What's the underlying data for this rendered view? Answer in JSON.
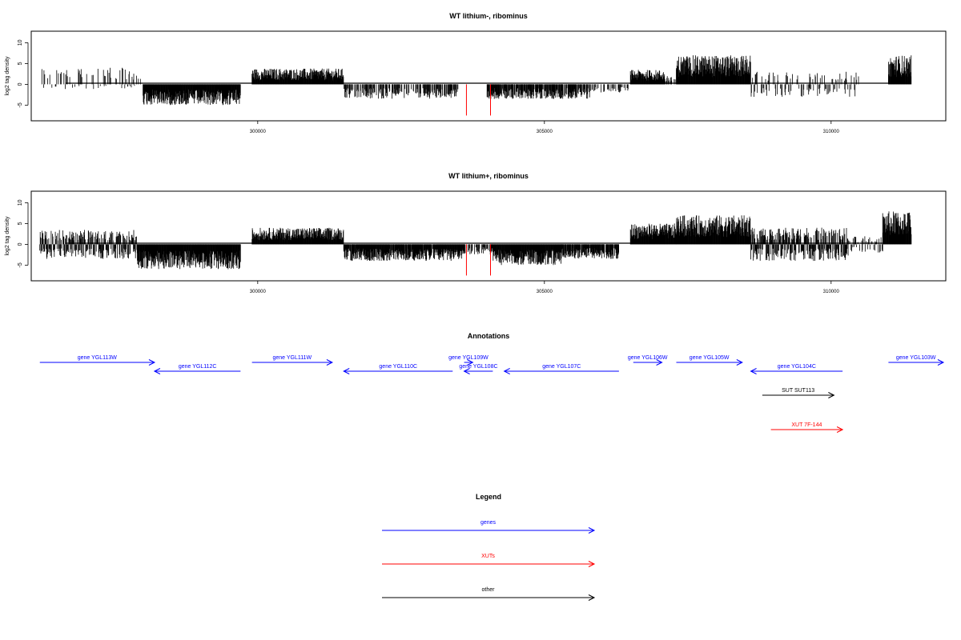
{
  "colors": {
    "gene": "#0000ff",
    "xut": "#ff0000",
    "other": "#000000",
    "highlight": "#ff0000",
    "bars": "#000000"
  },
  "chart_data": [
    {
      "type": "bar",
      "title": "WT lithium-, ribominus",
      "ylabel": "log2 tag density",
      "xlim": [
        296050,
        312000
      ],
      "ylim": [
        -8,
        12
      ],
      "yticks": [
        -5,
        0,
        5,
        10
      ],
      "xticks": [
        300000,
        305000,
        310000
      ],
      "grid": false,
      "segments": [
        {
          "x0": 296200,
          "x1": 297900,
          "pattern": "sparse_pos",
          "amp": 4,
          "density": 0.25
        },
        {
          "x0": 297900,
          "x1": 298000,
          "pattern": "pos",
          "amp": 2,
          "density": 0.3
        },
        {
          "x0": 298000,
          "x1": 299700,
          "pattern": "neg",
          "amp": 5,
          "density": 1.0
        },
        {
          "x0": 299900,
          "x1": 301500,
          "pattern": "pos",
          "amp": 3.8,
          "density": 1.0
        },
        {
          "x0": 301500,
          "x1": 303500,
          "pattern": "neg",
          "amp": 3.5,
          "density": 0.5
        },
        {
          "x0": 304000,
          "x1": 305800,
          "pattern": "neg",
          "amp": 3.5,
          "density": 0.8
        },
        {
          "x0": 305800,
          "x1": 306500,
          "pattern": "neg",
          "amp": 2,
          "density": 0.3
        },
        {
          "x0": 306500,
          "x1": 307100,
          "pattern": "pos",
          "amp": 3.5,
          "density": 1.0
        },
        {
          "x0": 307100,
          "x1": 307300,
          "pattern": "pos",
          "amp": 2,
          "density": 0.4
        },
        {
          "x0": 307300,
          "x1": 308600,
          "pattern": "pos",
          "amp": 7,
          "density": 1.0
        },
        {
          "x0": 308600,
          "x1": 310500,
          "pattern": "mixed",
          "amp": 3,
          "density": 0.3
        },
        {
          "x0": 311000,
          "x1": 311400,
          "pattern": "pos",
          "amp": 7,
          "density": 1.0
        }
      ],
      "highlighted_bars": [
        {
          "x": 303640,
          "y": -7.5
        },
        {
          "x": 304060,
          "y": -7.5
        }
      ]
    },
    {
      "type": "bar",
      "title": "WT lithium+, ribominus",
      "ylabel": "log2 tag density",
      "xlim": [
        296050,
        312000
      ],
      "ylim": [
        -8,
        12
      ],
      "yticks": [
        -5,
        0,
        5,
        10
      ],
      "xticks": [
        300000,
        305000,
        310000
      ],
      "grid": false,
      "segments": [
        {
          "x0": 296200,
          "x1": 297900,
          "pattern": "mixed",
          "amp": 3.5,
          "density": 0.85
        },
        {
          "x0": 297900,
          "x1": 299700,
          "pattern": "neg",
          "amp": 6,
          "density": 1.0
        },
        {
          "x0": 299900,
          "x1": 301500,
          "pattern": "pos",
          "amp": 4,
          "density": 1.0
        },
        {
          "x0": 301500,
          "x1": 303600,
          "pattern": "neg",
          "amp": 4,
          "density": 0.95
        },
        {
          "x0": 303600,
          "x1": 304100,
          "pattern": "neg",
          "amp": 2.5,
          "density": 0.5
        },
        {
          "x0": 304100,
          "x1": 305300,
          "pattern": "neg",
          "amp": 5,
          "density": 1.0
        },
        {
          "x0": 305300,
          "x1": 306300,
          "pattern": "neg",
          "amp": 3.5,
          "density": 0.9
        },
        {
          "x0": 306500,
          "x1": 307300,
          "pattern": "pos",
          "amp": 5,
          "density": 1.0
        },
        {
          "x0": 307300,
          "x1": 308600,
          "pattern": "pos",
          "amp": 7,
          "density": 1.0
        },
        {
          "x0": 308600,
          "x1": 310300,
          "pattern": "mixed",
          "amp": 4,
          "density": 1.0
        },
        {
          "x0": 310300,
          "x1": 310900,
          "pattern": "mixed",
          "amp": 2,
          "density": 0.4
        },
        {
          "x0": 310900,
          "x1": 311400,
          "pattern": "pos",
          "amp": 8,
          "density": 1.0
        }
      ],
      "highlighted_bars": [
        {
          "x": 303640,
          "y": -7.5
        },
        {
          "x": 304060,
          "y": -7.5
        }
      ]
    }
  ],
  "annotations": {
    "title": "Annotations",
    "xlim": [
      296050,
      312000
    ],
    "features": [
      {
        "label": "gene YGL113W",
        "start": 296200,
        "end": 298200,
        "strand": "+",
        "kind": "gene",
        "row": 0
      },
      {
        "label": "gene YGL112C",
        "start": 298200,
        "end": 299700,
        "strand": "-",
        "kind": "gene",
        "row": 1
      },
      {
        "label": "gene YGL111W",
        "start": 299900,
        "end": 301300,
        "strand": "+",
        "kind": "gene",
        "row": 0
      },
      {
        "label": "gene YGL110C",
        "start": 301500,
        "end": 303400,
        "strand": "-",
        "kind": "gene",
        "row": 1
      },
      {
        "label": "gene YGL109W",
        "start": 303600,
        "end": 303750,
        "strand": "+",
        "kind": "gene",
        "row": 0
      },
      {
        "label": "gene YGL108C",
        "start": 303600,
        "end": 304100,
        "strand": "-",
        "kind": "gene",
        "row": 1
      },
      {
        "label": "gene YGL107C",
        "start": 304300,
        "end": 306300,
        "strand": "-",
        "kind": "gene",
        "row": 1
      },
      {
        "label": "gene YGL106W",
        "start": 306550,
        "end": 307050,
        "strand": "+",
        "kind": "gene",
        "row": 0
      },
      {
        "label": "gene YGL105W",
        "start": 307300,
        "end": 308450,
        "strand": "+",
        "kind": "gene",
        "row": 0
      },
      {
        "label": "gene YGL104C",
        "start": 308600,
        "end": 310200,
        "strand": "-",
        "kind": "gene",
        "row": 1
      },
      {
        "label": "gene YGL103W",
        "start": 311000,
        "end": 312000,
        "strand": "+",
        "kind": "gene",
        "row": 0
      },
      {
        "label": "SUT SUT113",
        "start": 308800,
        "end": 310050,
        "strand": "+",
        "kind": "other",
        "row": 2
      },
      {
        "label": "XUT 7F-144",
        "start": 308950,
        "end": 310200,
        "strand": "+",
        "kind": "xut",
        "row": 3
      }
    ]
  },
  "legend": {
    "title": "Legend",
    "entries": [
      {
        "label": "genes",
        "kind": "gene"
      },
      {
        "label": "XUTs",
        "kind": "xut"
      },
      {
        "label": "other",
        "kind": "other"
      }
    ]
  }
}
